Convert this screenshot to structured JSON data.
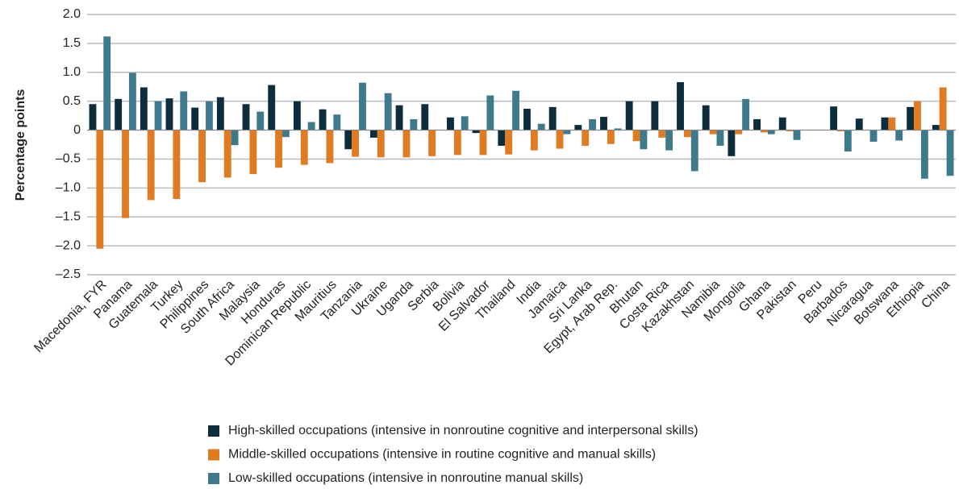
{
  "chart_data": {
    "type": "bar",
    "y_label": "Percentage points",
    "categories": [
      "Macedonia, FYR",
      "Panama",
      "Guatemala",
      "Turkey",
      "Philippines",
      "South Africa",
      "Malaysia",
      "Honduras",
      "Dominican Republic",
      "Mauritius",
      "Tanzania",
      "Ukraine",
      "Uganda",
      "Serbia",
      "Bolivia",
      "El Salvador",
      "Thailand",
      "India",
      "Jamaica",
      "Sri Lanka",
      "Egypt, Arab Rep.",
      "Bhutan",
      "Costa Rica",
      "Kazakhstan",
      "Namibia",
      "Mongolia",
      "Ghana",
      "Pakistan",
      "Peru",
      "Barbados",
      "Nicaragua",
      "Botswana",
      "Ethiopia",
      "China"
    ],
    "series": [
      {
        "name": "High-skilled occupations (intensive in nonroutine cognitive and interpersonal skills)",
        "color": "#0d2d3c",
        "values": [
          0.45,
          0.54,
          0.74,
          0.55,
          0.39,
          0.57,
          0.45,
          0.78,
          0.5,
          0.36,
          -0.33,
          -0.13,
          0.43,
          0.45,
          0.22,
          -0.05,
          -0.27,
          0.37,
          0.4,
          0.09,
          0.23,
          0.5,
          0.5,
          0.83,
          0.43,
          -0.45,
          0.19,
          0.22,
          0,
          0.41,
          0.2,
          0.22,
          0.4,
          0.09
        ]
      },
      {
        "name": "Middle-skilled occupations (intensive in routine cognitive and manual skills)",
        "color": "#e07b22",
        "values": [
          -2.05,
          -1.52,
          -1.21,
          -1.19,
          -0.9,
          -0.82,
          -0.76,
          -0.65,
          -0.6,
          -0.57,
          -0.46,
          -0.47,
          -0.47,
          -0.45,
          -0.43,
          -0.43,
          -0.42,
          -0.35,
          -0.32,
          -0.27,
          -0.24,
          -0.19,
          -0.13,
          -0.12,
          -0.07,
          -0.07,
          -0.04,
          -0.02,
          0,
          -0.02,
          0,
          0.22,
          0.5,
          0.74
        ]
      },
      {
        "name": "Low-skilled occupations (intensive in nonroutine manual skills)",
        "color": "#3f7a8c",
        "values": [
          1.62,
          0.99,
          0.5,
          0.67,
          0.5,
          -0.26,
          0.32,
          -0.12,
          0.14,
          0.27,
          0.82,
          0.64,
          0.19,
          0,
          0.24,
          0.6,
          0.68,
          0.11,
          -0.07,
          0.19,
          0.03,
          -0.33,
          -0.35,
          -0.71,
          -0.27,
          0.54,
          -0.07,
          -0.17,
          0,
          -0.37,
          -0.2,
          -0.18,
          -0.84,
          -0.79
        ]
      }
    ],
    "ylim": [
      -2.5,
      2.0
    ],
    "yticks": [
      {
        "value": 2.0,
        "label": "2.0"
      },
      {
        "value": 1.5,
        "label": "1.5"
      },
      {
        "value": 1.0,
        "label": "1.0"
      },
      {
        "value": 0.5,
        "label": "0.5"
      },
      0,
      {
        "value": -0.5,
        "label": "–0.5"
      },
      {
        "value": -1.0,
        "label": "–1.0"
      },
      {
        "value": -1.5,
        "label": "–1.5"
      },
      {
        "value": -2.0,
        "label": "–2.0"
      },
      {
        "value": -2.5,
        "label": "–2.5"
      }
    ],
    "grid": true
  }
}
